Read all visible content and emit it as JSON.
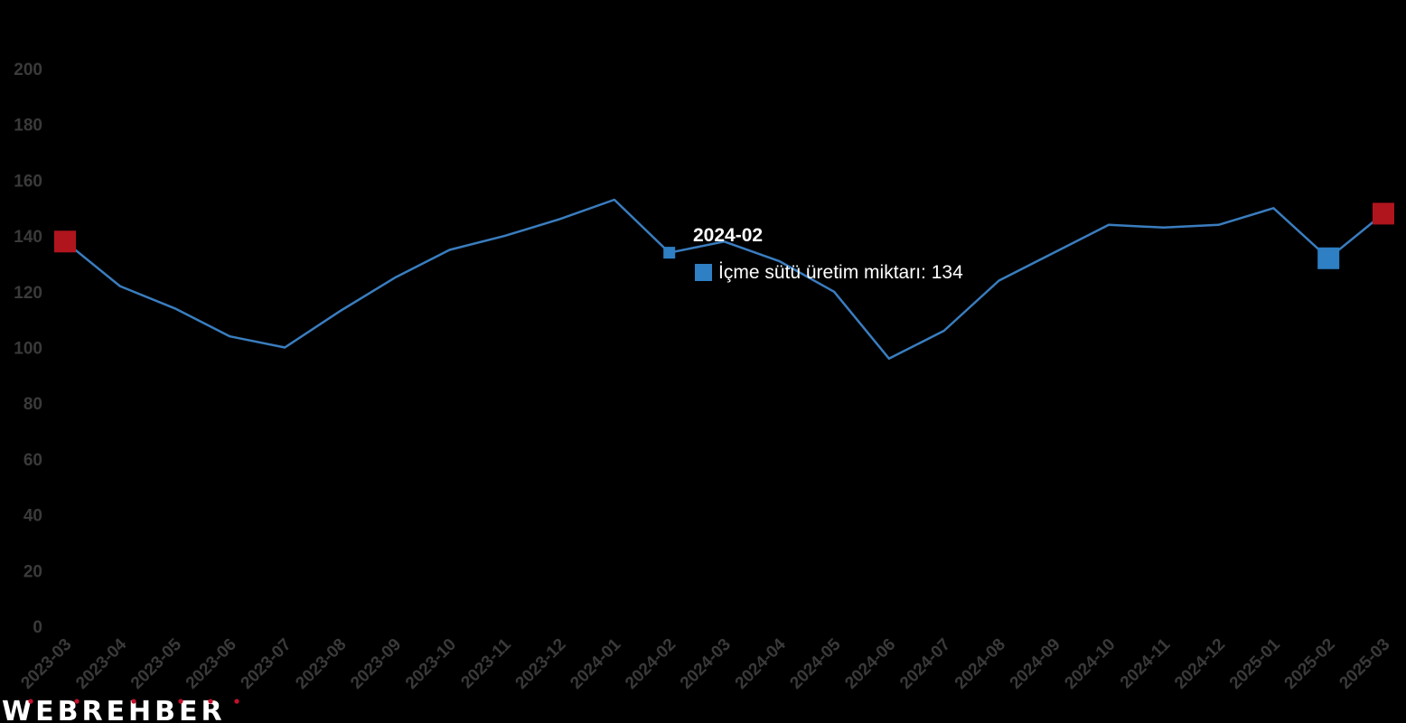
{
  "chart_data": {
    "type": "line",
    "title": "",
    "xlabel": "",
    "ylabel": "",
    "ylim": [
      0,
      200
    ],
    "y_ticks": [
      "0",
      "20",
      "40",
      "60",
      "80",
      "100",
      "120",
      "140",
      "160",
      "180",
      "200"
    ],
    "grid": false,
    "categories": [
      "2023-03",
      "2023-04",
      "2023-05",
      "2023-06",
      "2023-07",
      "2023-08",
      "2023-09",
      "2023-10",
      "2023-11",
      "2023-12",
      "2024-01",
      "2024-02",
      "2024-03",
      "2024-04",
      "2024-05",
      "2024-06",
      "2024-07",
      "2024-08",
      "2024-09",
      "2024-10",
      "2024-11",
      "2024-12",
      "2025-01",
      "2025-02",
      "2025-03"
    ],
    "series": [
      {
        "name": "İçme sütü üretim miktarı",
        "color": "#3a7dbf",
        "values": [
          138,
          122,
          114,
          104,
          100,
          113,
          125,
          135,
          140,
          146,
          153,
          134,
          138,
          131,
          120,
          96,
          106,
          124,
          134,
          144,
          143,
          144,
          150,
          132,
          148
        ]
      }
    ],
    "highlights": [
      {
        "category": "2023-03",
        "marker": "square",
        "color": "#b0151e"
      },
      {
        "category": "2024-02",
        "marker": "square",
        "color": "#2e7fc4"
      },
      {
        "category": "2025-02",
        "marker": "square",
        "color": "#2e7fc4"
      },
      {
        "category": "2025-03",
        "marker": "square",
        "color": "#b0151e"
      }
    ],
    "tooltip": {
      "title": "2024-02",
      "label": "İçme sütü üretim miktarı: 134",
      "swatch_color": "#2e7fc4"
    }
  },
  "logo": {
    "text": "WEBREHBER",
    "dot_color": "#c8102e"
  }
}
